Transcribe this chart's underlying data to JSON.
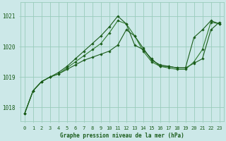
{
  "x": [
    0,
    1,
    2,
    3,
    4,
    5,
    6,
    7,
    8,
    9,
    10,
    11,
    12,
    13,
    14,
    15,
    16,
    17,
    18,
    19,
    20,
    21,
    22,
    23
  ],
  "line1": [
    1017.8,
    1018.55,
    1018.85,
    1019.0,
    1019.1,
    1019.25,
    1019.4,
    1019.55,
    1019.65,
    1019.75,
    1019.85,
    1020.05,
    1020.55,
    1020.35,
    1019.95,
    1019.55,
    1019.4,
    1019.35,
    1019.3,
    1019.3,
    1019.45,
    1019.6,
    1020.55,
    1020.8
  ],
  "line2": [
    1017.8,
    1018.55,
    1018.85,
    1019.0,
    1019.1,
    1019.3,
    1019.5,
    1019.7,
    1019.9,
    1020.1,
    1020.45,
    1020.85,
    1020.75,
    1020.35,
    1019.85,
    1019.5,
    1019.35,
    1019.3,
    1019.25,
    1019.25,
    1019.5,
    1019.9,
    1020.8,
    1020.75
  ],
  "line3": [
    1017.8,
    1018.55,
    1018.85,
    1019.0,
    1019.15,
    1019.35,
    1019.6,
    1019.85,
    1020.1,
    1020.35,
    1020.65,
    1021.0,
    1020.75,
    1020.05,
    1019.9,
    1019.6,
    1019.35,
    1019.35,
    1019.3,
    1019.3,
    1020.3,
    1020.55,
    1020.85,
    1020.75
  ],
  "background_color": "#cce8e8",
  "grid_color": "#99ccbb",
  "line_color_dark": "#1a5c1a",
  "line_color_mid": "#2d7a2d",
  "ylim_min": 1017.55,
  "ylim_max": 1021.45,
  "yticks": [
    1018,
    1019,
    1020,
    1021
  ],
  "xlabel": "Graphe pression niveau de la mer (hPa)",
  "label_color": "#1a5c1a",
  "tick_fontsize": 5.0,
  "xlabel_fontsize": 5.5,
  "figwidth": 3.2,
  "figheight": 2.0,
  "dpi": 100
}
